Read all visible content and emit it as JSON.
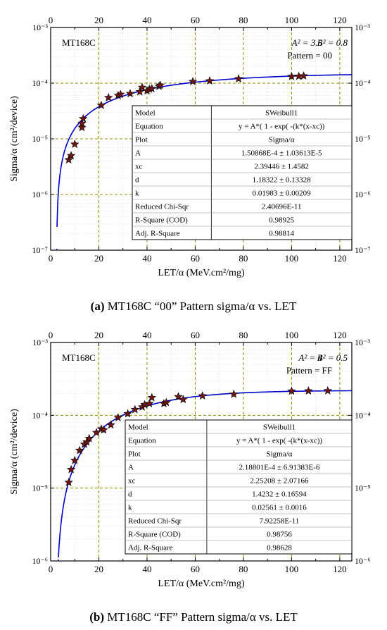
{
  "chart_data": [
    {
      "type": "scatter",
      "xlabel": "LET/α (MeV.cm²/mg)",
      "ylabel": "Sigma/α (cm²/device)",
      "caption_prefix": "(a)",
      "caption_text": " MT168C “00” Pattern sigma/α vs. LET",
      "chip": "MT168C",
      "params": {
        "a2": "A² = 3.5",
        "b2": "B² = 0.8",
        "pattern": "Pattern = 00"
      },
      "xlim": [
        0,
        125
      ],
      "ylim_exp": [
        -7,
        -3
      ],
      "log_y": true,
      "grid": true,
      "x_ticks": [
        "0",
        "20",
        "40",
        "60",
        "80",
        "100",
        "120"
      ],
      "y_ticks": [
        "10⁻⁷",
        "10⁻⁶",
        "10⁻⁵",
        "10⁻⁴",
        "10⁻³"
      ],
      "grid_x": [
        20,
        40,
        60,
        80,
        100,
        120
      ],
      "grid_y_exp": [
        -6,
        -5,
        -4
      ],
      "x": [
        7.5,
        8.5,
        10,
        13,
        13,
        13.5,
        21,
        24,
        28,
        29,
        33,
        37,
        38,
        40,
        41,
        42,
        45,
        45.5,
        59,
        66,
        78,
        100,
        103,
        105
      ],
      "y": [
        4.2e-06,
        5e-06,
        8e-06,
        1.6e-05,
        1.9e-05,
        2.3e-05,
        4e-05,
        5.5e-05,
        6e-05,
        6.3e-05,
        6.5e-05,
        7e-05,
        8.4e-05,
        7.3e-05,
        7.8e-05,
        8e-05,
        8.8e-05,
        9.2e-05,
        0.000107,
        0.00011,
        0.00012,
        0.000132,
        0.000133,
        0.000135
      ],
      "fit": {
        "A": 0.000150868,
        "xc": 2.39446,
        "d": 1.18322,
        "k": 0.01983
      },
      "fit_table": [
        [
          "Model",
          "SWeibull1"
        ],
        [
          "Equation",
          "y = A*( 1 - exp( -(k*(x-xc))"
        ],
        [
          "Plot",
          "Sigma/α"
        ],
        [
          "A",
          "1.50868E-4 ± 1.03613E-5"
        ],
        [
          "xc",
          "2.39446 ± 1.4582"
        ],
        [
          "d",
          "1.18322 ± 0.13328"
        ],
        [
          "k",
          "0.01983 ± 0.00209"
        ],
        [
          "Reduced Chi-Sqr",
          "2.40696E-11"
        ],
        [
          "R-Square (COD)",
          "0.98925"
        ],
        [
          "Adj. R-Square",
          "0.98814"
        ]
      ]
    },
    {
      "type": "scatter",
      "xlabel": "LET/α (MeV.cm²/mg)",
      "ylabel": "Sigma/α (cm²/device)",
      "caption_prefix": "(b)",
      "caption_text": " MT168C “FF” Pattern sigma/α vs. LET",
      "chip": "MT168C",
      "params": {
        "a2": "A² = 4",
        "b2": "B² = 0.5",
        "pattern": "Pattern = FF"
      },
      "xlim": [
        0,
        125
      ],
      "ylim_exp": [
        -6,
        -3
      ],
      "log_y": true,
      "grid": true,
      "x_ticks": [
        "0",
        "20",
        "40",
        "60",
        "80",
        "100",
        "120"
      ],
      "y_ticks": [
        "10⁻⁶",
        "10⁻⁵",
        "10⁻⁴",
        "10⁻³"
      ],
      "grid_x": [
        20,
        40,
        60,
        80,
        100,
        120
      ],
      "grid_y_exp": [
        -5,
        -4
      ],
      "x": [
        7.5,
        8.5,
        10,
        12,
        14,
        15,
        16,
        19,
        21,
        22,
        25,
        28,
        32,
        35,
        38,
        39,
        41,
        42,
        47,
        48,
        53,
        55,
        63,
        76,
        100,
        107,
        115
      ],
      "y": [
        1.2e-05,
        1.8e-05,
        2.4e-05,
        3.3e-05,
        4e-05,
        4.3e-05,
        4.8e-05,
        5.8e-05,
        6.5e-05,
        6.3e-05,
        7.4e-05,
        9.3e-05,
        0.000105,
        0.00012,
        0.00013,
        0.00014,
        0.000145,
        0.000175,
        0.000145,
        0.00015,
        0.00018,
        0.000165,
        0.000185,
        0.000195,
        0.000215,
        0.000216,
        0.000217
      ],
      "fit": {
        "A": 0.000218801,
        "xc": 2.25208,
        "d": 1.4232,
        "k": 0.02561
      },
      "fit_table": [
        [
          "Model",
          "SWeibull1"
        ],
        [
          "Equation",
          "y = A*( 1 - exp( -(k*(x-xc))"
        ],
        [
          "Plot",
          "Sigma/α"
        ],
        [
          "A",
          "2.18801E-4 ± 6.91383E-6"
        ],
        [
          "xc",
          "2.25208 ± 2.07166"
        ],
        [
          "d",
          "1.4232 ± 0.16594"
        ],
        [
          "k",
          "0.02561 ± 0.0016"
        ],
        [
          "Reduced Chi-Sqr",
          "7.92258E-11"
        ],
        [
          "R-Square (COD)",
          "0.98756"
        ],
        [
          "Adj. R-Square",
          "0.98628"
        ]
      ]
    }
  ],
  "colors": {
    "fit_line": "#0000cc",
    "grid_major": "#8c8c00",
    "grid_minor": "#c8c8c8",
    "marker_fill": "#7a1010",
    "marker_edge": "#111111",
    "axis": "#000000"
  },
  "marker_symbol": "star"
}
